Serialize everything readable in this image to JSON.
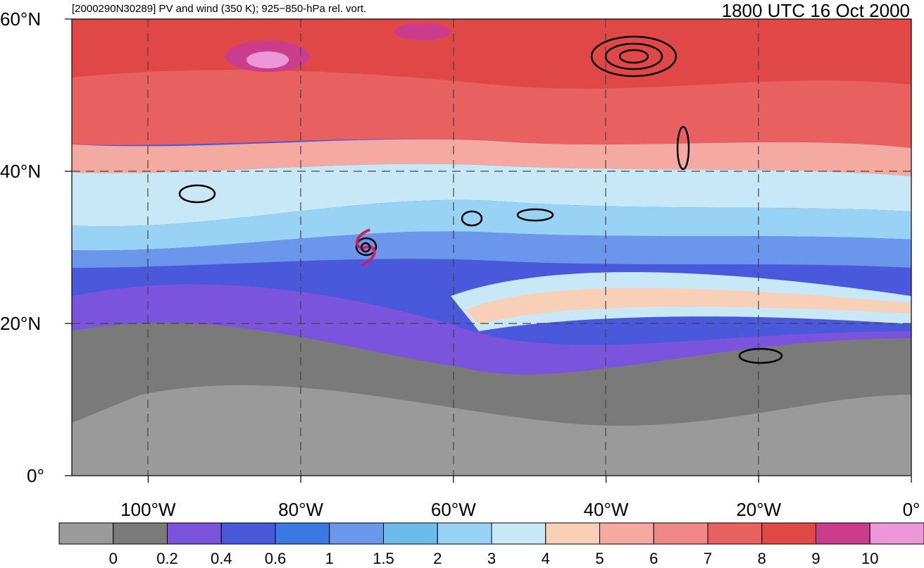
{
  "header": {
    "subtitle": "[2000290N30289] PV and wind (350 K); 925−850-hPa rel. vort.",
    "valid_time": "1800 UTC 16 Oct 2000"
  },
  "axes": {
    "lat_labels": [
      "60°N",
      "40°N",
      "20°N",
      "0°"
    ],
    "lat_values": [
      60,
      40,
      20,
      0
    ],
    "lon_labels": [
      "100°W",
      "80°W",
      "60°W",
      "40°W",
      "20°W",
      "0°"
    ],
    "lon_values": [
      -100,
      -80,
      -60,
      -40,
      -20,
      0
    ],
    "lon_range": [
      -110,
      0
    ],
    "lat_range": [
      0,
      60
    ]
  },
  "colorbar": {
    "labels": [
      "0",
      "0.2",
      "0.4",
      "0.6",
      "1",
      "1.5",
      "2",
      "3",
      "4",
      "5",
      "6",
      "7",
      "8",
      "9",
      "10"
    ],
    "colors": [
      "#9a9a9a",
      "#7a7a7a",
      "#7a54dc",
      "#4a58dc",
      "#3a78e4",
      "#6a96ec",
      "#6cbcea",
      "#98d2f4",
      "#c8e8f8",
      "#f8d0b8",
      "#f4aaa0",
      "#f08888",
      "#e86060",
      "#e04848",
      "#cc3c8c",
      "#ec98d8"
    ]
  },
  "storm": {
    "label": "tropical-cyclone-symbol",
    "color": "#d81b60",
    "lat": 30,
    "lon": -71.5
  }
}
